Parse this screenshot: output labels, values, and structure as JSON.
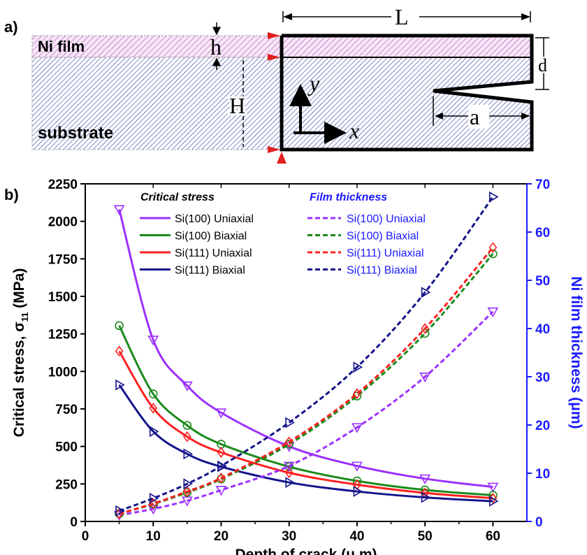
{
  "panel_a": {
    "label": "a)",
    "film_label": "Ni film",
    "substrate_label": "substrate",
    "h_label": "h",
    "H_label": "H",
    "L_label": "L",
    "d_label": "d",
    "a_label": "a",
    "y_label": "y",
    "x_label": "x"
  },
  "panel_b": {
    "label": "b)"
  },
  "chart_data": {
    "type": "line",
    "xlabel": "Depth of crack (μ m)",
    "ylabel_left": "Critical stress, σ",
    "ylabel_left_sub": "11",
    "ylabel_left_unit": " (MPa)",
    "ylabel_right": "Ni film thickness (μm)",
    "xlim": [
      0,
      65
    ],
    "ylim_left": [
      0,
      2250
    ],
    "ylim_right": [
      0,
      70
    ],
    "xticks": [
      0,
      10,
      20,
      30,
      40,
      50,
      60
    ],
    "yticks_left": [
      0,
      250,
      500,
      750,
      1000,
      1250,
      1500,
      1750,
      2000,
      2250
    ],
    "yticks_right": [
      0,
      10,
      20,
      30,
      40,
      50,
      60,
      70
    ],
    "legend_left_title": "Critical stress",
    "legend_right_title": "Film thickness",
    "x": [
      5,
      10,
      15,
      20,
      30,
      40,
      50,
      60
    ],
    "stress_series": [
      {
        "name": "Si(100) Uniaxial",
        "color": "#9b30ff",
        "marker": "triangle-down",
        "values": [
          2080,
          1210,
          905,
          725,
          500,
          370,
          285,
          230
        ]
      },
      {
        "name": "Si(100) Biaxial",
        "color": "#1a8a1a",
        "marker": "circle",
        "values": [
          1305,
          850,
          640,
          515,
          365,
          270,
          210,
          175
        ]
      },
      {
        "name": "Si(111) Uniaxial",
        "color": "#ff2020",
        "marker": "diamond",
        "values": [
          1135,
          755,
          565,
          460,
          325,
          245,
          190,
          155
        ]
      },
      {
        "name": "Si(111) Biaxial",
        "color": "#14148c",
        "marker": "triangle-right",
        "values": [
          910,
          600,
          450,
          365,
          260,
          200,
          160,
          135
        ]
      }
    ],
    "thickness_series": [
      {
        "name": "Si(100) Uniaxial",
        "color": "#9b30ff",
        "marker": "triangle-down",
        "values": [
          1.3,
          2.6,
          4.3,
          6.5,
          11.5,
          19.5,
          30.0,
          43.5
        ]
      },
      {
        "name": "Si(100) Biaxial",
        "color": "#1a8a1a",
        "marker": "circle",
        "values": [
          1.6,
          3.6,
          6.0,
          8.8,
          16.0,
          26.0,
          39.0,
          55.5
        ]
      },
      {
        "name": "Si(111) Uniaxial",
        "color": "#ff2020",
        "marker": "diamond",
        "values": [
          1.6,
          3.7,
          6.2,
          9.0,
          16.5,
          26.5,
          40.0,
          56.8
        ]
      },
      {
        "name": "Si(111) Biaxial",
        "color": "#14148c",
        "marker": "triangle-right",
        "values": [
          2.2,
          4.8,
          7.8,
          11.5,
          20.5,
          32.0,
          47.5,
          67.3
        ]
      }
    ],
    "right_axis_color": "#1a1aff"
  }
}
